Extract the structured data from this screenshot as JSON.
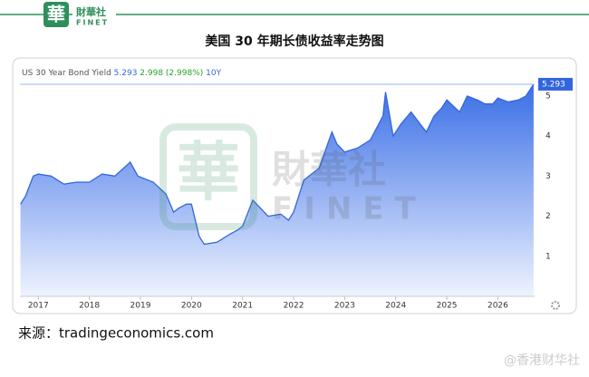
{
  "logo": {
    "mark": "華",
    "name": "財華社",
    "en": "FINET"
  },
  "chart_data": {
    "type": "area",
    "title": "美国 30 年期长债收益率走势图",
    "legend": {
      "name": "US 30 Year Bond Yield",
      "change_text": "2.998 (2.998%)",
      "period": "10Y"
    },
    "x": [
      2016.65,
      2016.75,
      2016.9,
      2017.0,
      2017.25,
      2017.5,
      2017.75,
      2018.0,
      2018.25,
      2018.5,
      2018.8,
      2018.95,
      2019.25,
      2019.5,
      2019.65,
      2019.75,
      2019.9,
      2020.0,
      2020.15,
      2020.25,
      2020.5,
      2020.75,
      2020.9,
      2021.0,
      2021.2,
      2021.5,
      2021.75,
      2021.9,
      2022.0,
      2022.2,
      2022.4,
      2022.5,
      2022.75,
      2022.85,
      2023.0,
      2023.25,
      2023.5,
      2023.75,
      2023.8,
      2023.95,
      2024.1,
      2024.3,
      2024.6,
      2024.75,
      2024.9,
      2025.0,
      2025.25,
      2025.4,
      2025.6,
      2025.75,
      2025.9,
      2026.0,
      2026.2,
      2026.4,
      2026.55,
      2026.7
    ],
    "series": [
      {
        "name": "US 30 Year Bond Yield",
        "color": "#3366dd",
        "values": [
          2.3,
          2.5,
          3.0,
          3.05,
          3.0,
          2.8,
          2.85,
          2.85,
          3.05,
          3.0,
          3.35,
          3.0,
          2.85,
          2.55,
          2.1,
          2.2,
          2.3,
          2.3,
          1.5,
          1.3,
          1.35,
          1.55,
          1.65,
          1.75,
          2.4,
          2.0,
          2.05,
          1.9,
          2.1,
          2.9,
          3.1,
          3.2,
          4.1,
          3.8,
          3.6,
          3.7,
          3.9,
          4.5,
          5.1,
          4.0,
          4.3,
          4.6,
          4.1,
          4.5,
          4.7,
          4.9,
          4.6,
          5.0,
          4.9,
          4.8,
          4.8,
          4.95,
          4.85,
          4.9,
          5.0,
          5.293
        ]
      }
    ],
    "xlim": [
      2016.64,
      2026.72
    ],
    "xticks": [
      2017,
      2018,
      2019,
      2020,
      2021,
      2022,
      2023,
      2024,
      2025,
      2026
    ],
    "ylim": [
      0,
      5.45
    ],
    "yticks": [
      1,
      2,
      3,
      4,
      5
    ],
    "grid": false
  },
  "source": "来源：tradingeconomics.com",
  "watermark": "@香港财华社"
}
